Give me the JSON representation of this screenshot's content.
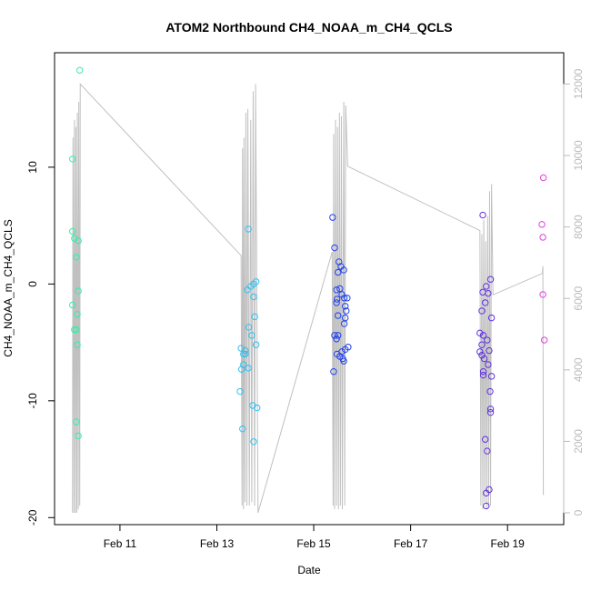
{
  "chart_data": {
    "type": "scatter",
    "title": "ATOM2 Northbound CH4_NOAA_m_CH4_QCLS",
    "x_label": "Date",
    "y_label": "CH4_NOAA_m_CH4_QCLS",
    "xlim": [
      9.65,
      20.16
    ],
    "xticks": [
      {
        "value": 11,
        "label": "Feb 11"
      },
      {
        "value": 13,
        "label": "Feb 13"
      },
      {
        "value": 15,
        "label": "Feb 15"
      },
      {
        "value": 17,
        "label": "Feb 17"
      },
      {
        "value": 19,
        "label": "Feb 19"
      }
    ],
    "ylim": [
      -20.6,
      19.8
    ],
    "yticks": [
      -20,
      -10,
      0,
      10
    ],
    "y2lim": [
      -330,
      12875
    ],
    "y2ticks": [
      0,
      2000,
      4000,
      6000,
      8000,
      10000,
      12000
    ],
    "series": [
      {
        "type": "line",
        "axis": "y2",
        "color": "#c0c0c0",
        "x": [
          10.02,
          10.03,
          10.05,
          10.06,
          10.08,
          10.09,
          10.11,
          10.12,
          10.14,
          10.15,
          10.17,
          10.18,
          13.5,
          13.52,
          13.53,
          13.55,
          13.56,
          13.58,
          13.6,
          13.62,
          13.64,
          13.67,
          13.7,
          13.72,
          13.75,
          13.78,
          13.8,
          13.85,
          15.38,
          15.4,
          15.41,
          15.43,
          15.45,
          15.47,
          15.49,
          15.51,
          15.53,
          15.55,
          15.57,
          15.59,
          15.62,
          15.64,
          15.66,
          15.7,
          18.43,
          18.45,
          18.47,
          18.49,
          18.51,
          18.53,
          18.55,
          18.57,
          18.59,
          18.61,
          18.63,
          18.65,
          18.67,
          18.7,
          19.72,
          19.73,
          19.74
        ],
        "values": [
          0,
          10500,
          0,
          11000,
          0,
          10800,
          0,
          11200,
          100,
          11500,
          200,
          12000,
          7200,
          200,
          10200,
          100,
          10500,
          300,
          11200,
          200,
          11300,
          200,
          11000,
          300,
          11800,
          200,
          12000,
          0,
          7300,
          200,
          10600,
          100,
          11000,
          200,
          10800,
          100,
          11200,
          200,
          11100,
          100,
          11500,
          200,
          11400,
          9700,
          7900,
          200,
          7800,
          100,
          8200,
          300,
          7600,
          100,
          8300,
          200,
          9000,
          200,
          9200,
          6100,
          6700,
          6900,
          500
        ]
      },
      {
        "color": "#30f0a8",
        "x": [
          10.02,
          10.02,
          10.06,
          10.14,
          10.1,
          10.02,
          10.06,
          10.14,
          10.12,
          10.1,
          10.12,
          10.1,
          10.14,
          10.17
        ],
        "values": [
          10.7,
          4.5,
          3.9,
          3.7,
          2.3,
          -1.8,
          -3.9,
          -0.6,
          -2.6,
          -3.9,
          -5.2,
          -11.8,
          -13.0,
          18.3
        ]
      },
      {
        "color": "#30c0f0",
        "x": [
          13.65,
          13.48,
          13.53,
          13.76,
          13.74,
          13.83,
          13.5,
          13.55,
          13.59,
          13.51,
          13.55,
          13.65,
          13.66,
          13.72,
          13.78,
          13.81,
          13.76,
          13.63,
          13.7,
          13.76,
          13.81,
          13.59
        ],
        "values": [
          4.7,
          -9.2,
          -12.4,
          -13.5,
          -10.4,
          -10.6,
          -5.5,
          -6.0,
          -5.7,
          -7.3,
          -6.9,
          -7.2,
          -3.7,
          -4.4,
          -2.8,
          -5.2,
          -1.1,
          -0.5,
          -0.2,
          0.0,
          0.2,
          -6.0
        ]
      },
      {
        "color": "#2040f0",
        "x": [
          15.39,
          15.43,
          15.52,
          15.56,
          15.5,
          15.62,
          15.47,
          15.54,
          15.58,
          15.48,
          15.63,
          15.69,
          15.47,
          15.65,
          15.67,
          15.5,
          15.65,
          15.63,
          15.43,
          15.47,
          15.5,
          15.65,
          15.71,
          15.58,
          15.48,
          15.54,
          15.6,
          15.62,
          15.41
        ],
        "values": [
          5.7,
          3.1,
          1.9,
          1.5,
          1.0,
          1.2,
          -0.5,
          -0.4,
          -0.9,
          -1.3,
          -1.2,
          -1.2,
          -1.6,
          -1.9,
          -2.3,
          -2.7,
          -2.9,
          -3.4,
          -4.4,
          -4.7,
          -4.4,
          -5.6,
          -5.4,
          -5.8,
          -6.0,
          -6.2,
          -6.4,
          -6.6,
          -7.5
        ]
      },
      {
        "color": "#6030e0",
        "x": [
          18.49,
          18.65,
          18.56,
          18.49,
          18.6,
          18.54,
          18.47,
          18.67,
          18.43,
          18.5,
          18.58,
          18.47,
          18.43,
          18.62,
          18.47,
          18.52,
          18.6,
          18.5,
          18.5,
          18.67,
          18.64,
          18.65,
          18.65,
          18.54,
          18.58,
          18.62,
          18.56,
          18.56
        ],
        "values": [
          5.9,
          0.4,
          -0.2,
          -0.7,
          -0.8,
          -1.6,
          -2.3,
          -2.9,
          -4.2,
          -4.4,
          -4.8,
          -5.2,
          -5.8,
          -5.7,
          -6.1,
          -6.4,
          -6.9,
          -7.5,
          -7.8,
          -7.9,
          -9.2,
          -10.7,
          -11.0,
          -13.3,
          -14.3,
          -17.6,
          -17.9,
          -19.0
        ]
      },
      {
        "color": "#e040e0",
        "x": [
          19.74,
          19.71,
          19.73,
          19.73,
          19.76
        ],
        "values": [
          9.1,
          5.1,
          4.0,
          -0.9,
          -4.8
        ]
      }
    ]
  }
}
